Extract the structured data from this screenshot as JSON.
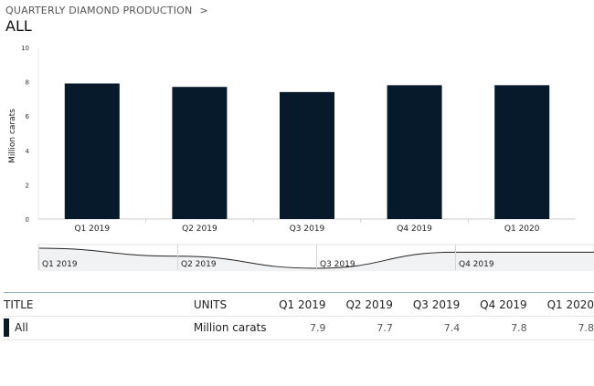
{
  "breadcrumb": {
    "label": "QUARTERLY DIAMOND PRODUCTION",
    "separator": ">"
  },
  "page_title": "ALL",
  "colors": {
    "bar": "#061a2b",
    "grid": "#e9e9e9",
    "axis": "#cfcfcf",
    "navigator_fill": "#f0f2f4",
    "navigator_line": "#222222"
  },
  "chart_data": {
    "type": "bar",
    "categories": [
      "Q1 2019",
      "Q2 2019",
      "Q3 2019",
      "Q4 2019",
      "Q1 2020"
    ],
    "values": [
      7.9,
      7.7,
      7.4,
      7.8,
      7.8
    ],
    "ylabel": "Million carats",
    "ylim": [
      0,
      10
    ],
    "yticks": [
      "0",
      "2",
      "4",
      "6",
      "8",
      "10"
    ],
    "grid": false,
    "navigator": {
      "labels": [
        "Q1 2019",
        "Q2 2019",
        "Q3 2019",
        "Q4 2019"
      ]
    }
  },
  "table": {
    "headers": [
      "TITLE",
      "UNITS",
      "Q1 2019",
      "Q2 2019",
      "Q3 2019",
      "Q4 2019",
      "Q1 2020"
    ],
    "rows": [
      {
        "title": "All",
        "units": "Million carats",
        "values": [
          "7.9",
          "7.7",
          "7.4",
          "7.8",
          "7.8"
        ]
      }
    ]
  }
}
